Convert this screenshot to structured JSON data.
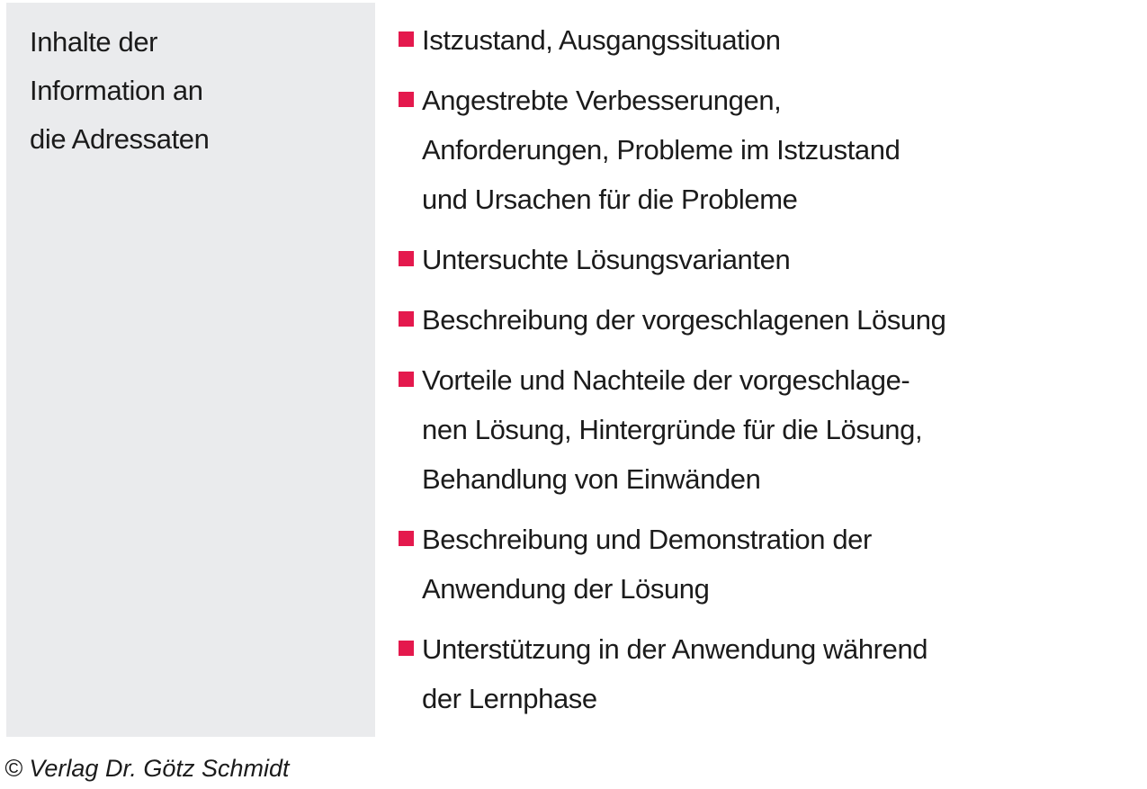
{
  "page": {
    "background": "#ffffff",
    "sidebar_bg": "#eaebed",
    "accent_color": "#e4194d",
    "text_color": "#1b1b1b"
  },
  "sidebar": {
    "title_lines": [
      "Inhalte der",
      "Information an",
      "die Adressaten"
    ]
  },
  "bullets": [
    {
      "lines": [
        "Istzustand, Ausgangssituation"
      ]
    },
    {
      "lines": [
        "Angestrebte Verbesserungen,",
        "Anforderungen, Probleme im Istzustand",
        "und Ursachen für die Probleme"
      ]
    },
    {
      "lines": [
        "Untersuchte Lösungsvarianten"
      ]
    },
    {
      "lines": [
        "Beschreibung der vorgeschlagenen Lösung"
      ]
    },
    {
      "lines": [
        "Vorteile und Nachteile der vorgeschlage-",
        "nen Lösung, Hintergründe für die Lösung,",
        "Behandlung von Einwänden"
      ]
    },
    {
      "lines": [
        "Beschreibung und Demonstration der",
        "Anwendung der Lösung"
      ]
    },
    {
      "lines": [
        "Unterstützung in der Anwendung während",
        "der Lernphase"
      ]
    }
  ],
  "footer": {
    "copyright": "© Verlag Dr. Götz Schmidt"
  }
}
